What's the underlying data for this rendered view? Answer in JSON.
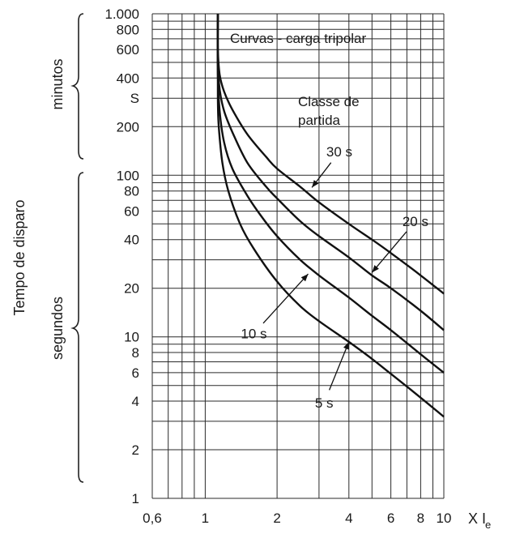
{
  "chart_data": {
    "type": "line",
    "title": "Curvas - carga tripolar",
    "legend_title_line1": "Classe de",
    "legend_title_line2": "partida",
    "ylabel": "Tempo de disparo",
    "xlabel": "X I",
    "xlabel_subscript": "e",
    "y_brace_labels": {
      "upper": "minutos",
      "lower": "segundos"
    },
    "x_scale": "log",
    "y_scale": "log",
    "xlim": [
      0.6,
      10
    ],
    "ylim": [
      1,
      1000
    ],
    "grid": true,
    "x_ticks": [
      {
        "v": 0.6,
        "label": "0,6"
      },
      {
        "v": 1,
        "label": "1"
      },
      {
        "v": 2,
        "label": "2"
      },
      {
        "v": 4,
        "label": "4"
      },
      {
        "v": 6,
        "label": "6"
      },
      {
        "v": 8,
        "label": "8"
      },
      {
        "v": 10,
        "label": "10"
      }
    ],
    "y_ticks": [
      {
        "v": 1000,
        "label": "1.000"
      },
      {
        "v": 800,
        "label": "800"
      },
      {
        "v": 600,
        "label": "600"
      },
      {
        "v": 400,
        "label": "400"
      },
      {
        "v": 300,
        "label": "S"
      },
      {
        "v": 200,
        "label": "200"
      },
      {
        "v": 100,
        "label": "100"
      },
      {
        "v": 80,
        "label": "80"
      },
      {
        "v": 60,
        "label": "60"
      },
      {
        "v": 40,
        "label": "40"
      },
      {
        "v": 20,
        "label": "20"
      },
      {
        "v": 10,
        "label": "10"
      },
      {
        "v": 8,
        "label": "8"
      },
      {
        "v": 6,
        "label": "6"
      },
      {
        "v": 4,
        "label": "4"
      },
      {
        "v": 2,
        "label": "2"
      },
      {
        "v": 1,
        "label": "1"
      }
    ],
    "x_grid": [
      0.6,
      0.7,
      0.8,
      0.9,
      1,
      2,
      3,
      4,
      5,
      6,
      7,
      8,
      9,
      10
    ],
    "y_grid": [
      1,
      2,
      3,
      4,
      5,
      6,
      7,
      8,
      9,
      10,
      20,
      30,
      40,
      50,
      60,
      70,
      80,
      90,
      100,
      200,
      300,
      400,
      500,
      600,
      700,
      800,
      900,
      1000
    ],
    "series": [
      {
        "name": "5 s",
        "x": [
          1.13,
          1.13,
          1.14,
          1.18,
          1.25,
          1.4,
          1.6,
          2.0,
          2.5,
          3.0,
          4.0,
          5.0,
          6.0,
          8.0,
          10.0
        ],
        "y": [
          1000,
          300,
          200,
          120,
          80,
          50,
          35,
          22,
          15.5,
          12.5,
          9.3,
          7.3,
          5.9,
          4.2,
          3.2
        ]
      },
      {
        "name": "10 s",
        "x": [
          1.13,
          1.13,
          1.15,
          1.2,
          1.3,
          1.5,
          1.7,
          2.0,
          2.5,
          3.0,
          4.0,
          5.0,
          6.0,
          8.0,
          10.0
        ],
        "y": [
          1000,
          420,
          250,
          160,
          110,
          75,
          57,
          42,
          30,
          24,
          17.5,
          13.5,
          11.0,
          7.8,
          6.0
        ]
      },
      {
        "name": "20 s",
        "x": [
          1.13,
          1.13,
          1.15,
          1.2,
          1.3,
          1.5,
          1.8,
          2.0,
          2.5,
          3.0,
          4.0,
          5.0,
          6.0,
          8.0,
          10.0
        ],
        "y": [
          1000,
          500,
          340,
          250,
          185,
          120,
          85,
          72,
          52,
          42,
          31,
          24,
          20,
          14.5,
          11.0
        ]
      },
      {
        "name": "30 s",
        "x": [
          1.13,
          1.13,
          1.15,
          1.2,
          1.3,
          1.5,
          1.8,
          2.0,
          2.5,
          3.0,
          4.0,
          5.0,
          6.0,
          8.0,
          10.0
        ],
        "y": [
          1000,
          600,
          420,
          330,
          255,
          180,
          130,
          110,
          85,
          68,
          50,
          40,
          33,
          24,
          18.5
        ]
      }
    ],
    "annotations": [
      {
        "label": "30 s",
        "at": [
          3.65,
          140
        ],
        "arrow_to": [
          2.8,
          84
        ]
      },
      {
        "label": "20 s",
        "at": [
          7.6,
          52
        ],
        "arrow_to": [
          5.0,
          25
        ]
      },
      {
        "label": "10 s",
        "at": [
          1.6,
          10.5
        ],
        "arrow_to": [
          2.7,
          24.5
        ]
      },
      {
        "label": "5 s",
        "at": [
          3.15,
          3.9
        ],
        "arrow_to": [
          4.0,
          9.3
        ]
      }
    ]
  }
}
